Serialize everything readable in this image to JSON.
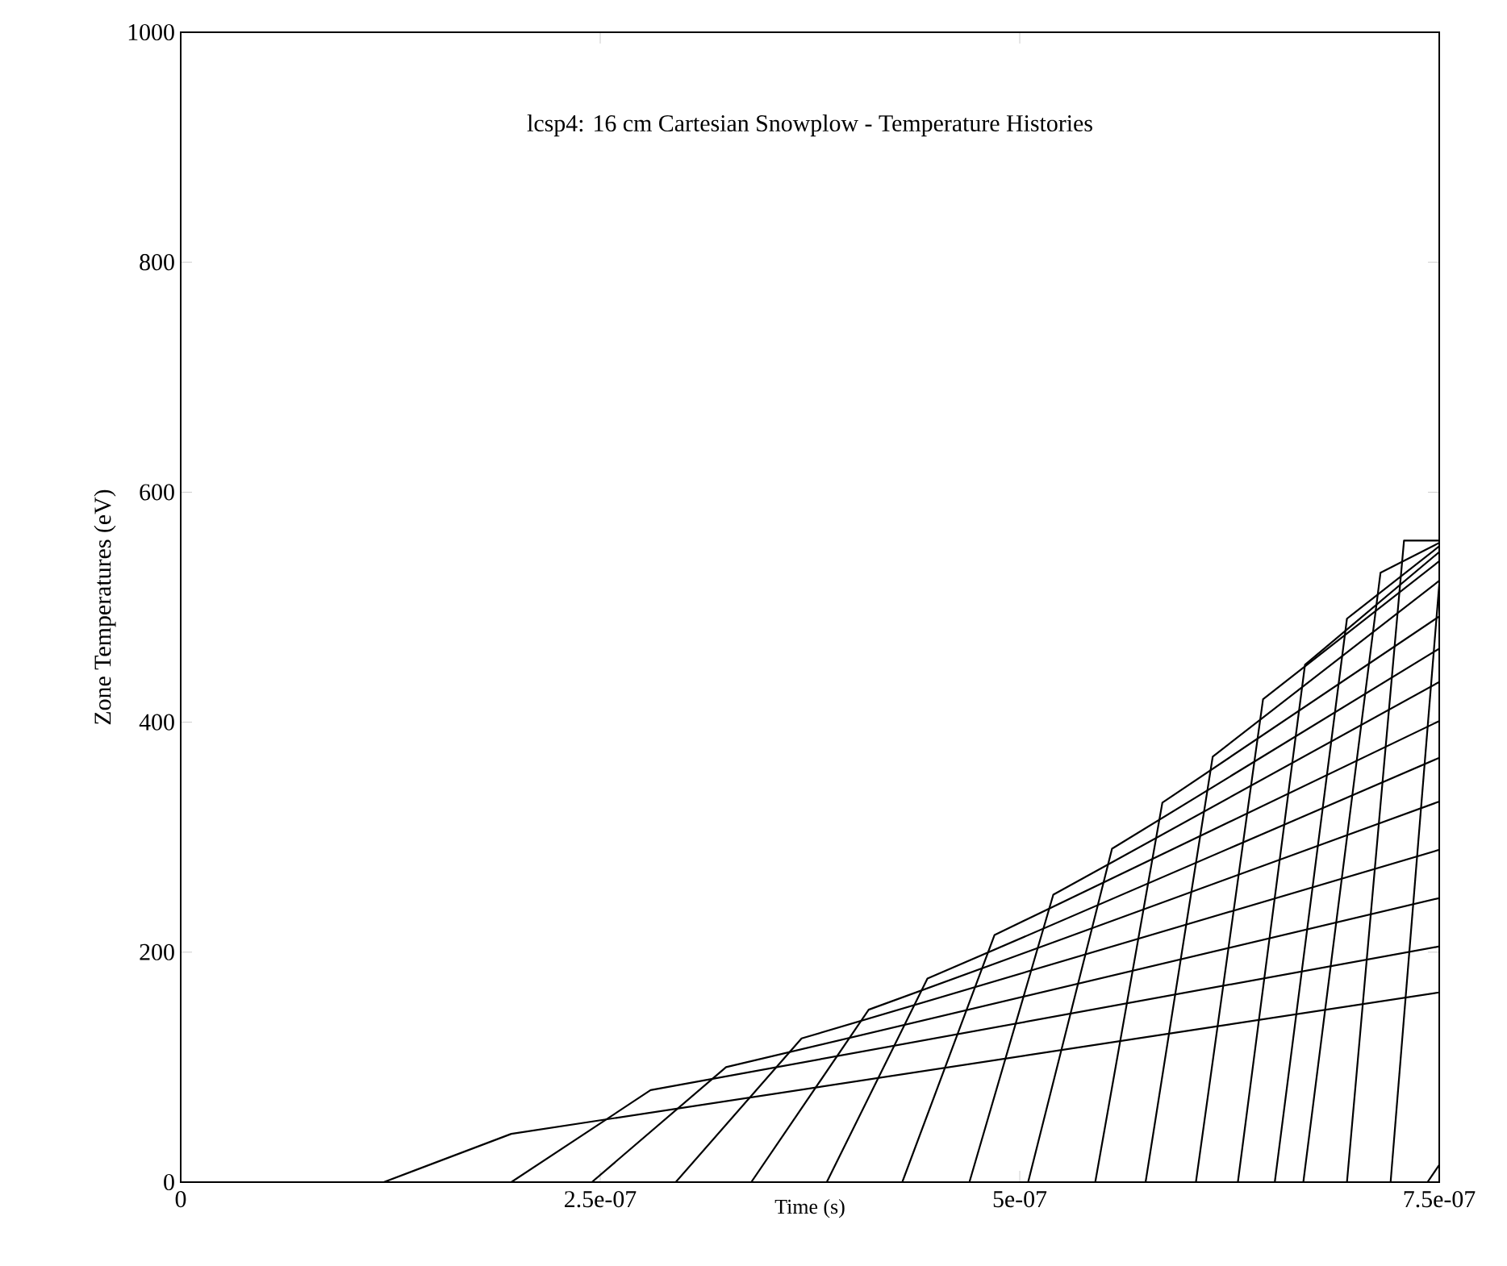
{
  "chart_data": {
    "type": "line",
    "title": "lcsp4: 16 cm Cartesian Snowplow - Temperature Histories",
    "xlabel": "Time (s)",
    "ylabel": "Zone Temperatures (eV)",
    "xlim": [
      0,
      7.5e-07
    ],
    "ylim": [
      0,
      1000
    ],
    "xticks": [
      0,
      {
        "value": 2.5e-07,
        "label": "2.5e-07"
      },
      {
        "value": 5e-07,
        "label": "5e-07"
      },
      {
        "value": 7.5e-07,
        "label": "7.5e-07"
      }
    ],
    "yticks": [
      0,
      200,
      400,
      600,
      800,
      1000
    ],
    "series": [
      {
        "color": "#000000",
        "x": [
          0,
          1.21e-07,
          1.97e-07,
          7.5e-07
        ],
        "values": [
          0,
          0,
          42,
          165
        ]
      },
      {
        "color": "#000000",
        "x": [
          1.97e-07,
          2.8e-07,
          7.5e-07
        ],
        "values": [
          0,
          80,
          205
        ]
      },
      {
        "color": "#000000",
        "x": [
          2.45e-07,
          3.25e-07,
          7.5e-07
        ],
        "values": [
          0,
          100,
          247
        ]
      },
      {
        "color": "#000000",
        "x": [
          2.95e-07,
          3.7e-07,
          7.5e-07
        ],
        "values": [
          0,
          125,
          289
        ]
      },
      {
        "color": "#000000",
        "x": [
          3.4e-07,
          4.1e-07,
          7.5e-07
        ],
        "values": [
          0,
          150,
          331
        ]
      },
      {
        "color": "#000000",
        "x": [
          3.85e-07,
          4.45e-07,
          7.5e-07
        ],
        "values": [
          0,
          177,
          369
        ]
      },
      {
        "color": "#000000",
        "x": [
          4.3e-07,
          4.85e-07,
          7.5e-07
        ],
        "values": [
          0,
          215,
          401
        ]
      },
      {
        "color": "#000000",
        "x": [
          4.7e-07,
          5.2e-07,
          7.5e-07
        ],
        "values": [
          0,
          250,
          435
        ]
      },
      {
        "color": "#000000",
        "x": [
          5.05e-07,
          5.55e-07,
          7.5e-07
        ],
        "values": [
          0,
          290,
          464
        ]
      },
      {
        "color": "#000000",
        "x": [
          5.45e-07,
          5.85e-07,
          7.5e-07
        ],
        "values": [
          0,
          330,
          492
        ]
      },
      {
        "color": "#000000",
        "x": [
          5.75e-07,
          6.15e-07,
          7.5e-07
        ],
        "values": [
          0,
          370,
          523
        ]
      },
      {
        "color": "#000000",
        "x": [
          6.05e-07,
          6.45e-07,
          7.5e-07
        ],
        "values": [
          0,
          420,
          540
        ]
      },
      {
        "color": "#000000",
        "x": [
          6.3e-07,
          6.7e-07,
          7.5e-07
        ],
        "values": [
          0,
          450,
          548
        ]
      },
      {
        "color": "#000000",
        "x": [
          6.52e-07,
          6.95e-07,
          7.5e-07
        ],
        "values": [
          0,
          490,
          553
        ]
      },
      {
        "color": "#000000",
        "x": [
          6.69e-07,
          7.15e-07,
          7.5e-07
        ],
        "values": [
          0,
          530,
          556
        ]
      },
      {
        "color": "#000000",
        "x": [
          6.95e-07,
          7.29e-07,
          7.5e-07
        ],
        "values": [
          0,
          558,
          558
        ]
      },
      {
        "color": "#000000",
        "x": [
          7.21e-07,
          7.5e-07
        ],
        "values": [
          0,
          520
        ]
      },
      {
        "color": "#000000",
        "x": [
          7.43e-07,
          7.5e-07
        ],
        "values": [
          0,
          15
        ]
      }
    ]
  }
}
